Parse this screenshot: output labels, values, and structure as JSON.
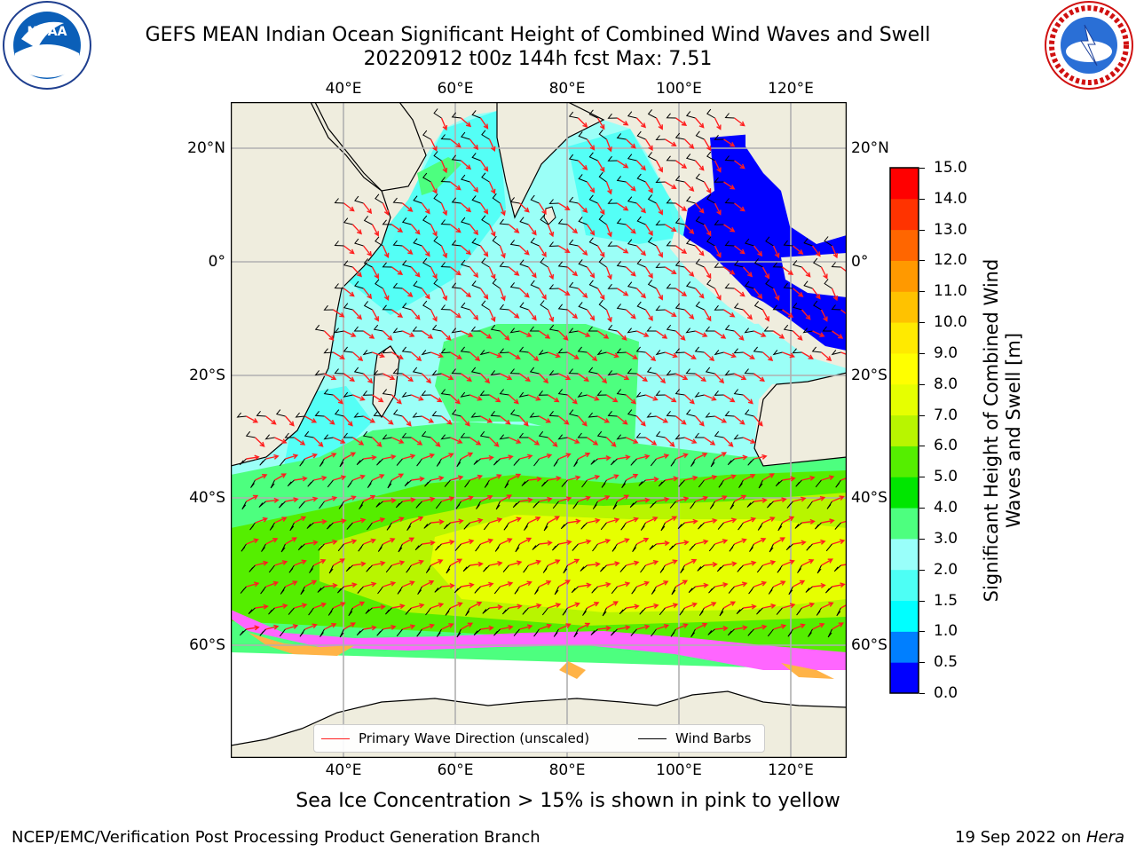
{
  "title_line1": "GEFS MEAN Indian Ocean Significant Height of Combined Wind Waves and Swell",
  "title_line2": "20220912 t00z 144h fcst   Max: 7.51",
  "logos": {
    "left": "noaa-logo",
    "right": "national-weather-service-logo"
  },
  "map": {
    "lon_ticks": [
      "40°E",
      "60°E",
      "80°E",
      "100°E",
      "120°E"
    ],
    "lat_ticks": [
      "20°N",
      "0°",
      "20°S",
      "40°S",
      "60°S"
    ],
    "colors": {
      "land": "#efedde",
      "ocean_default": "#9bfff7",
      "ice_pink": "#ff66ff",
      "ice_orange": "#ffb347",
      "arrow": "#ff1f1f",
      "barb": "#000000"
    }
  },
  "colorbar": {
    "title": "Significant Height of Combined Wind Waves and Swell [m]",
    "labels": [
      "0.0",
      "0.5",
      "1.0",
      "1.5",
      "2.0",
      "3.0",
      "4.0",
      "5.0",
      "6.0",
      "7.0",
      "8.0",
      "9.0",
      "10.0",
      "11.0",
      "12.0",
      "13.0",
      "14.0",
      "15.0"
    ],
    "colors": [
      "#0000ff",
      "#007fff",
      "#00ffff",
      "#4dfff5",
      "#99fffa",
      "#4dff7f",
      "#00e600",
      "#55ee00",
      "#b8f500",
      "#e6ff00",
      "#ffff00",
      "#ffea00",
      "#ffc200",
      "#ff9900",
      "#ff6600",
      "#ff3300",
      "#ff0000"
    ]
  },
  "legend": {
    "primary_wave": "Primary Wave Direction (unscaled)",
    "wind_barbs": "Wind Barbs"
  },
  "caption": "Sea Ice Concentration > 15% is shown in pink to yellow",
  "footer": {
    "left": "NCEP/EMC/Verification Post Processing Product Generation Branch",
    "right_prefix": "19 Sep 2022 on ",
    "right_machine": "Hera"
  }
}
